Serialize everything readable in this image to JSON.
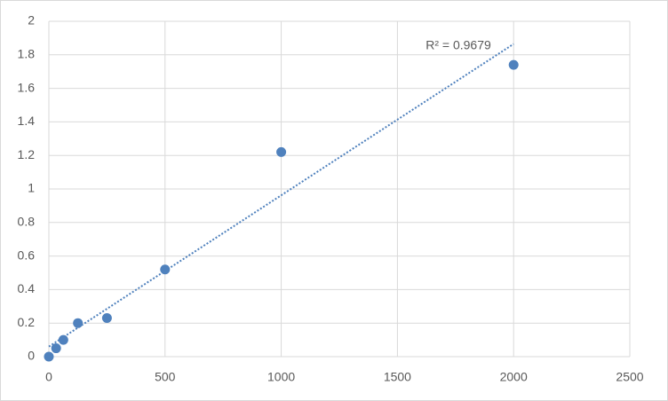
{
  "chart_data": {
    "type": "scatter",
    "annotation": "R² = 0.9679",
    "series": [
      {
        "color": "#4f81bd",
        "x": [
          0,
          31.25,
          62.5,
          125,
          250,
          500,
          1000,
          2000
        ],
        "values": [
          0,
          0.05,
          0.1,
          0.2,
          0.23,
          0.52,
          1.22,
          1.74
        ]
      }
    ],
    "trendline": "linear",
    "xlim": [
      0,
      2500
    ],
    "xticks": [
      0,
      500,
      1000,
      1500,
      2000,
      2500
    ],
    "ylim": [
      0,
      2
    ],
    "yticks": [
      0,
      0.2,
      0.4,
      0.6,
      0.8,
      1,
      1.2,
      1.4,
      1.6,
      1.8,
      2
    ],
    "grid": true
  }
}
